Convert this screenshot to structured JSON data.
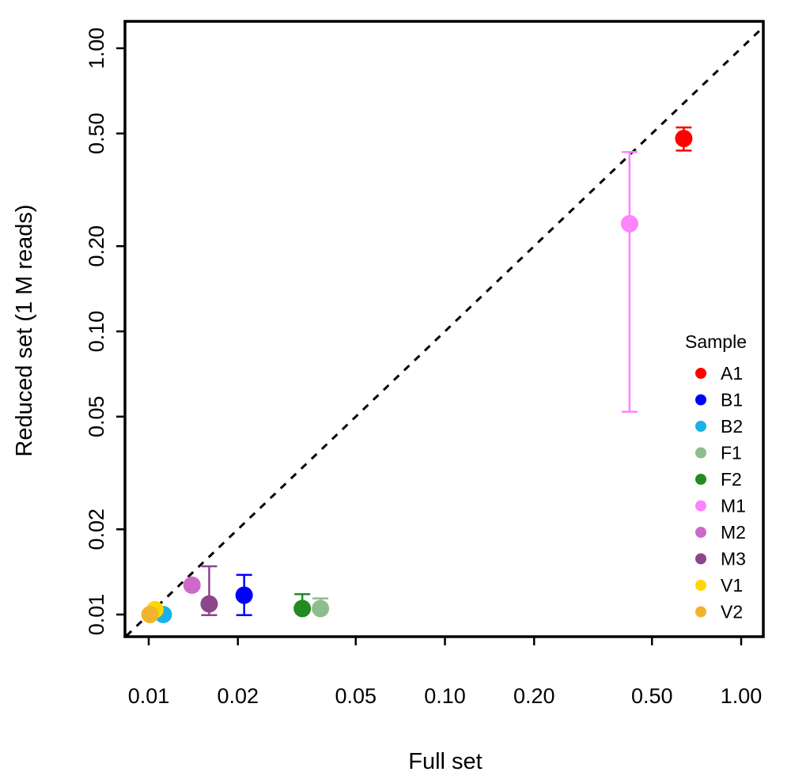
{
  "chart_data": {
    "type": "scatter",
    "title": "",
    "xlabel": "Full set",
    "ylabel": "Reduced set (1 M reads)",
    "xscale": "log",
    "yscale": "log",
    "xlim": [
      0.0084,
      1.16
    ],
    "ylim": [
      0.0084,
      1.16
    ],
    "xticks": [
      {
        "value": 0.01,
        "label": "0.01"
      },
      {
        "value": 0.02,
        "label": "0.02"
      },
      {
        "value": 0.05,
        "label": "0.05"
      },
      {
        "value": 0.1,
        "label": "0.10"
      },
      {
        "value": 0.2,
        "label": "0.20"
      },
      {
        "value": 0.5,
        "label": "0.50"
      },
      {
        "value": 1.0,
        "label": "1.00"
      }
    ],
    "yticks": [
      {
        "value": 0.01,
        "label": "0.01"
      },
      {
        "value": 0.02,
        "label": "0.02"
      },
      {
        "value": 0.05,
        "label": "0.05"
      },
      {
        "value": 0.1,
        "label": "0.10"
      },
      {
        "value": 0.2,
        "label": "0.20"
      },
      {
        "value": 0.5,
        "label": "0.50"
      },
      {
        "value": 1.0,
        "label": "1.00"
      }
    ],
    "reference_line": {
      "type": "identity",
      "style": "dashed"
    },
    "legend": {
      "title": "Sample",
      "position": "right"
    },
    "series": [
      {
        "name": "A1",
        "color": "#ff0000",
        "x": 0.64,
        "y": 0.48,
        "err_low": 0.435,
        "err_high": 0.525
      },
      {
        "name": "B1",
        "color": "#0000ff",
        "x": 0.021,
        "y": 0.0117,
        "err_low": 0.00995,
        "err_high": 0.0138
      },
      {
        "name": "B2",
        "color": "#19b2e6",
        "x": 0.0112,
        "y": 0.01,
        "err_low": null,
        "err_high": null
      },
      {
        "name": "F1",
        "color": "#8fbc8f",
        "x": 0.038,
        "y": 0.0105,
        "err_low": null,
        "err_high": 0.0114
      },
      {
        "name": "F2",
        "color": "#228b22",
        "x": 0.033,
        "y": 0.0105,
        "err_low": null,
        "err_high": 0.0118
      },
      {
        "name": "M1",
        "color": "#ff82ff",
        "x": 0.42,
        "y": 0.24,
        "err_low": 0.052,
        "err_high": 0.43
      },
      {
        "name": "M2",
        "color": "#cd69c9",
        "x": 0.014,
        "y": 0.0127,
        "err_low": null,
        "err_high": null
      },
      {
        "name": "M3",
        "color": "#8b4789",
        "x": 0.016,
        "y": 0.0109,
        "err_low": 0.00995,
        "err_high": 0.0148
      },
      {
        "name": "V1",
        "color": "#ffd700",
        "x": 0.0105,
        "y": 0.0104,
        "err_low": null,
        "err_high": null
      },
      {
        "name": "V2",
        "color": "#f0b42d",
        "x": 0.0101,
        "y": 0.01,
        "err_low": null,
        "err_high": null
      }
    ]
  }
}
